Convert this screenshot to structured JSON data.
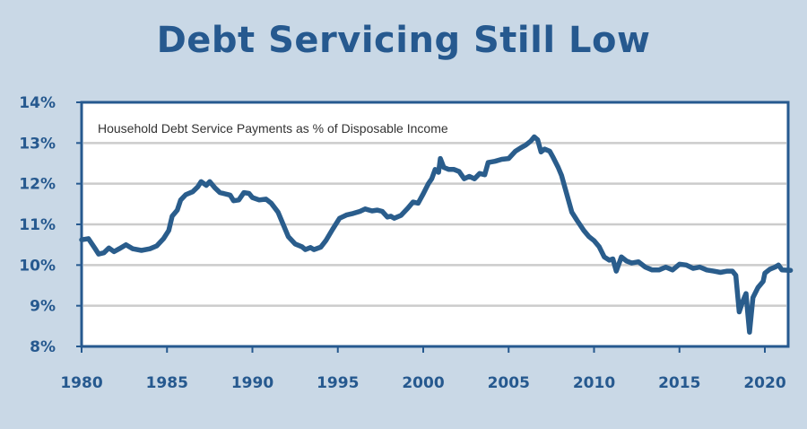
{
  "title": "Debt Servicing Still Low",
  "chart_data": {
    "type": "line",
    "title": "Debt Servicing Still Low",
    "subtitle": "Household Debt Service Payments as % of Disposable Income",
    "xlabel": "",
    "ylabel": "",
    "xlim": [
      1980,
      2021.6
    ],
    "ylim": [
      8,
      14
    ],
    "x_ticks": [
      "1980",
      "1985",
      "1990",
      "1995",
      "2000",
      "2005",
      "2010",
      "2015",
      "2020"
    ],
    "y_ticks": [
      "8%",
      "9%",
      "10%",
      "11%",
      "12%",
      "13%",
      "14%"
    ],
    "grid": "horizontal",
    "series": [
      {
        "name": "",
        "color": "#2a5d8c",
        "points": [
          [
            1980.0,
            10.62
          ],
          [
            1980.4,
            10.65
          ],
          [
            1980.8,
            10.4
          ],
          [
            1981.0,
            10.27
          ],
          [
            1981.3,
            10.3
          ],
          [
            1981.6,
            10.42
          ],
          [
            1981.9,
            10.33
          ],
          [
            1982.2,
            10.4
          ],
          [
            1982.6,
            10.5
          ],
          [
            1983.0,
            10.4
          ],
          [
            1983.5,
            10.36
          ],
          [
            1984.0,
            10.4
          ],
          [
            1984.4,
            10.47
          ],
          [
            1984.8,
            10.65
          ],
          [
            1985.1,
            10.85
          ],
          [
            1985.3,
            11.2
          ],
          [
            1985.6,
            11.35
          ],
          [
            1985.8,
            11.6
          ],
          [
            1986.1,
            11.73
          ],
          [
            1986.5,
            11.8
          ],
          [
            1986.8,
            11.92
          ],
          [
            1987.0,
            12.05
          ],
          [
            1987.3,
            11.96
          ],
          [
            1987.5,
            12.05
          ],
          [
            1987.8,
            11.9
          ],
          [
            1988.1,
            11.78
          ],
          [
            1988.4,
            11.75
          ],
          [
            1988.7,
            11.72
          ],
          [
            1988.9,
            11.58
          ],
          [
            1989.2,
            11.6
          ],
          [
            1989.5,
            11.78
          ],
          [
            1989.8,
            11.76
          ],
          [
            1990.0,
            11.66
          ],
          [
            1990.4,
            11.6
          ],
          [
            1990.8,
            11.62
          ],
          [
            1991.1,
            11.52
          ],
          [
            1991.5,
            11.3
          ],
          [
            1991.8,
            11.0
          ],
          [
            1992.1,
            10.7
          ],
          [
            1992.5,
            10.52
          ],
          [
            1992.9,
            10.45
          ],
          [
            1993.1,
            10.38
          ],
          [
            1993.4,
            10.43
          ],
          [
            1993.6,
            10.38
          ],
          [
            1994.0,
            10.44
          ],
          [
            1994.3,
            10.6
          ],
          [
            1994.7,
            10.88
          ],
          [
            1995.1,
            11.15
          ],
          [
            1995.5,
            11.23
          ],
          [
            1995.9,
            11.27
          ],
          [
            1996.3,
            11.32
          ],
          [
            1996.6,
            11.38
          ],
          [
            1997.0,
            11.33
          ],
          [
            1997.3,
            11.35
          ],
          [
            1997.6,
            11.32
          ],
          [
            1997.9,
            11.18
          ],
          [
            1998.1,
            11.2
          ],
          [
            1998.3,
            11.15
          ],
          [
            1998.7,
            11.22
          ],
          [
            1999.1,
            11.4
          ],
          [
            1999.4,
            11.55
          ],
          [
            1999.7,
            11.52
          ],
          [
            2000.0,
            11.75
          ],
          [
            2000.3,
            12.0
          ],
          [
            2000.5,
            12.12
          ],
          [
            2000.7,
            12.35
          ],
          [
            2000.9,
            12.28
          ],
          [
            2001.0,
            12.62
          ],
          [
            2001.2,
            12.4
          ],
          [
            2001.5,
            12.35
          ],
          [
            2001.8,
            12.35
          ],
          [
            2002.1,
            12.3
          ],
          [
            2002.4,
            12.12
          ],
          [
            2002.7,
            12.18
          ],
          [
            2003.0,
            12.12
          ],
          [
            2003.3,
            12.25
          ],
          [
            2003.6,
            12.22
          ],
          [
            2003.8,
            12.52
          ],
          [
            2004.2,
            12.55
          ],
          [
            2004.6,
            12.6
          ],
          [
            2005.0,
            12.62
          ],
          [
            2005.4,
            12.8
          ],
          [
            2005.7,
            12.88
          ],
          [
            2006.0,
            12.95
          ],
          [
            2006.3,
            13.05
          ],
          [
            2006.5,
            13.15
          ],
          [
            2006.7,
            13.08
          ],
          [
            2006.9,
            12.78
          ],
          [
            2007.1,
            12.85
          ],
          [
            2007.4,
            12.8
          ],
          [
            2007.6,
            12.65
          ],
          [
            2007.9,
            12.4
          ],
          [
            2008.1,
            12.2
          ],
          [
            2008.4,
            11.75
          ],
          [
            2008.7,
            11.3
          ],
          [
            2009.0,
            11.1
          ],
          [
            2009.4,
            10.85
          ],
          [
            2009.7,
            10.7
          ],
          [
            2010.0,
            10.6
          ],
          [
            2010.3,
            10.45
          ],
          [
            2010.6,
            10.2
          ],
          [
            2010.9,
            10.12
          ],
          [
            2011.1,
            10.15
          ],
          [
            2011.3,
            9.85
          ],
          [
            2011.6,
            10.2
          ],
          [
            2011.9,
            10.1
          ],
          [
            2012.2,
            10.05
          ],
          [
            2012.6,
            10.08
          ],
          [
            2013.0,
            9.95
          ],
          [
            2013.4,
            9.88
          ],
          [
            2013.8,
            9.88
          ],
          [
            2014.2,
            9.95
          ],
          [
            2014.6,
            9.88
          ],
          [
            2015.0,
            10.02
          ],
          [
            2015.4,
            10.0
          ],
          [
            2015.8,
            9.92
          ],
          [
            2016.2,
            9.95
          ],
          [
            2016.6,
            9.88
          ],
          [
            2017.0,
            9.85
          ],
          [
            2017.4,
            9.82
          ],
          [
            2017.8,
            9.85
          ],
          [
            2018.1,
            9.85
          ],
          [
            2018.3,
            9.75
          ],
          [
            2018.5,
            8.85
          ],
          [
            2018.7,
            9.1
          ],
          [
            2018.9,
            9.3
          ],
          [
            2019.0,
            8.8
          ],
          [
            2019.1,
            8.35
          ],
          [
            2019.3,
            9.2
          ],
          [
            2019.6,
            9.45
          ],
          [
            2019.9,
            9.6
          ],
          [
            2020.0,
            9.8
          ],
          [
            2020.3,
            9.9
          ],
          [
            2020.6,
            9.95
          ],
          [
            2020.8,
            10.0
          ],
          [
            2021.0,
            9.88
          ],
          [
            2021.5,
            9.87
          ]
        ]
      }
    ]
  }
}
